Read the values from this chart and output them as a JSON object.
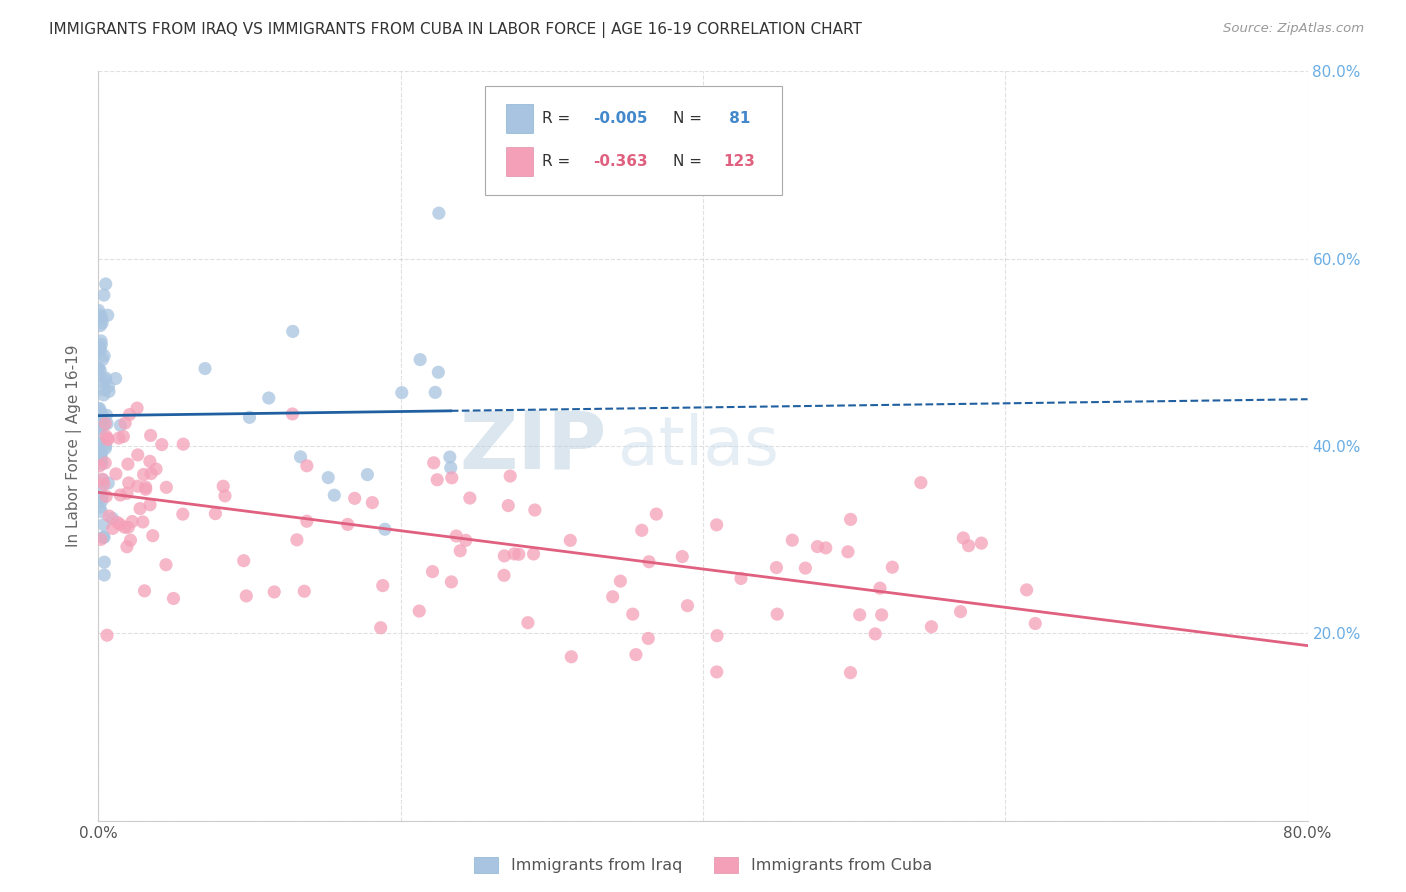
{
  "title": "IMMIGRANTS FROM IRAQ VS IMMIGRANTS FROM CUBA IN LABOR FORCE | AGE 16-19 CORRELATION CHART",
  "source": "Source: ZipAtlas.com",
  "ylabel": "In Labor Force | Age 16-19",
  "xlim": [
    0.0,
    0.8
  ],
  "ylim": [
    0.0,
    0.8
  ],
  "iraq_R": -0.005,
  "iraq_N": 81,
  "cuba_R": -0.363,
  "cuba_N": 123,
  "iraq_color": "#a8c4e0",
  "cuba_color": "#f4a0b8",
  "iraq_line_color": "#2060a0",
  "cuba_line_color": "#e06080",
  "background_color": "#ffffff",
  "grid_color": "#cccccc",
  "title_color": "#333333",
  "axis_label_color": "#666666",
  "tick_color_right": "#6aade4",
  "watermark_zip_color": "#c0d0e0",
  "watermark_atlas_color": "#d0dce8",
  "legend_text_color": "#333333",
  "legend_value_blue": "#4488cc",
  "legend_value_pink": "#e06080"
}
